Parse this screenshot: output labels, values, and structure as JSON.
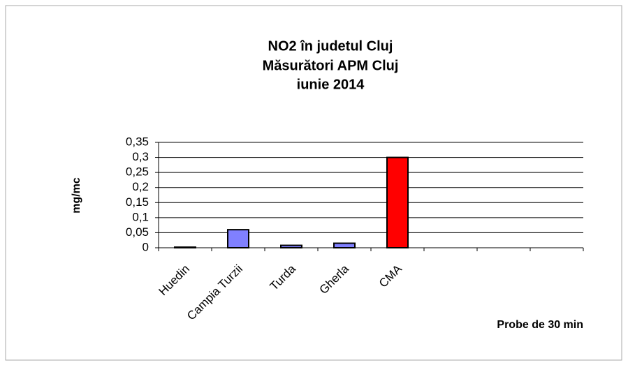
{
  "chart_data": {
    "type": "bar",
    "title": [
      "NO2 în judetul Cluj",
      "Măsurători APM Cluj",
      "iunie 2014"
    ],
    "y_label": "mg/mc",
    "x_label": "Probe de 30 min",
    "categories": [
      "Huedin",
      "Campia Turzii",
      "Turda",
      "Gherla",
      "CMA",
      null,
      null,
      null
    ],
    "values": [
      0.002,
      0.06,
      0.008,
      0.015,
      0.3,
      null,
      null,
      null
    ],
    "colors": [
      "#8080ff",
      "#8080ff",
      "#8080ff",
      "#8080ff",
      "#ff0000",
      null,
      null,
      null
    ],
    "ylim": [
      0,
      0.35
    ],
    "yticks": [
      0,
      {
        "value": 0.05,
        "label": "0,05"
      },
      {
        "value": 0.1,
        "label": "0,1"
      },
      {
        "value": 0.15,
        "label": "0,15"
      },
      {
        "value": 0.2,
        "label": "0,2"
      },
      {
        "value": 0.25,
        "label": "0,25"
      },
      {
        "value": 0.3,
        "label": "0,3"
      },
      {
        "value": 0.35,
        "label": "0,35"
      }
    ],
    "grid": true
  }
}
